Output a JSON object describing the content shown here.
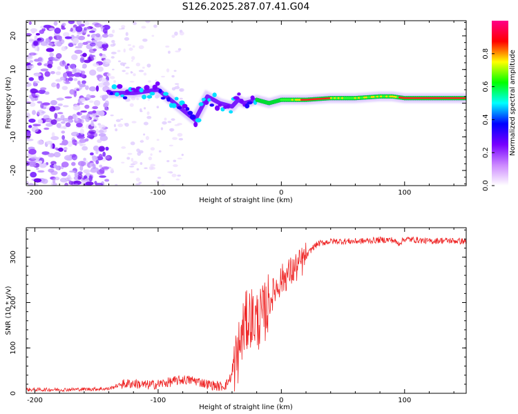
{
  "title": "S126.2025.287.07.41.G04",
  "chart_data": [
    {
      "type": "heatmap",
      "name": "spectrogram",
      "xlabel": "Height of straight line (km)",
      "ylabel": "Frequency (Hz)",
      "xlim": [
        -207,
        150
      ],
      "ylim": [
        -24.5,
        24.5
      ],
      "xticks": [
        -200,
        -100,
        0,
        100
      ],
      "yticks": [
        -20,
        -10,
        0,
        10,
        20
      ],
      "xtick_labels": [
        "-200",
        "-100",
        "0",
        "100"
      ],
      "ytick_labels": [
        "-20",
        "-10",
        "0",
        "10",
        "20"
      ],
      "colorbar": {
        "label": "Normalized spectral amplitude",
        "range": [
          0,
          1
        ],
        "ticks": [
          0.0,
          0.2,
          0.4,
          0.6,
          0.8
        ],
        "tick_labels": [
          "0.0",
          "0.2",
          "0.4",
          "0.6",
          "0.8"
        ],
        "colors": [
          "#ffffff",
          "#cc88ff",
          "#7700ff",
          "#0000ff",
          "#00ffff",
          "#00ff00",
          "#ffff00",
          "#ff0000",
          "#ff0088"
        ]
      },
      "signal_track": {
        "x": [
          -140,
          -120,
          -100,
          -90,
          -80,
          -70,
          -60,
          -50,
          -40,
          -35,
          -30,
          -20,
          -10,
          0,
          10,
          20,
          40,
          60,
          80,
          90,
          100,
          120,
          150
        ],
        "y": [
          3,
          3,
          4,
          1,
          -2,
          -5,
          2,
          0,
          -1,
          1,
          0,
          1,
          0,
          1,
          1,
          1,
          1.5,
          1.5,
          2,
          2,
          1.5,
          1.5,
          1.5
        ]
      }
    },
    {
      "type": "line",
      "name": "snr",
      "xlabel": "Height of straight line (km)",
      "ylabel": "SNR (10 * v/v)",
      "xlim": [
        -207,
        150
      ],
      "ylim": [
        0,
        365
      ],
      "xticks": [
        -200,
        -100,
        0,
        100
      ],
      "yticks": [
        0,
        100,
        200,
        300
      ],
      "xtick_labels": [
        "-200",
        "-100",
        "0",
        "100"
      ],
      "ytick_labels": [
        "0",
        "100",
        "200",
        "300"
      ],
      "color": "#ee2222",
      "series": [
        {
          "name": "SNR",
          "x": [
            -207,
            -180,
            -160,
            -140,
            -130,
            -120,
            -110,
            -100,
            -90,
            -80,
            -70,
            -60,
            -50,
            -45,
            -40,
            -35,
            -30,
            -25,
            -20,
            -15,
            -10,
            -5,
            0,
            5,
            10,
            15,
            20,
            25,
            30,
            40,
            50,
            60,
            70,
            80,
            90,
            95,
            100,
            110,
            120,
            130,
            140,
            150
          ],
          "y": [
            8,
            8,
            9,
            10,
            20,
            22,
            18,
            20,
            25,
            30,
            28,
            20,
            15,
            18,
            40,
            90,
            150,
            170,
            160,
            170,
            200,
            230,
            250,
            262,
            272,
            285,
            300,
            320,
            330,
            335,
            335,
            335,
            336,
            338,
            338,
            330,
            340,
            338,
            335,
            337,
            336,
            335
          ]
        }
      ]
    }
  ]
}
